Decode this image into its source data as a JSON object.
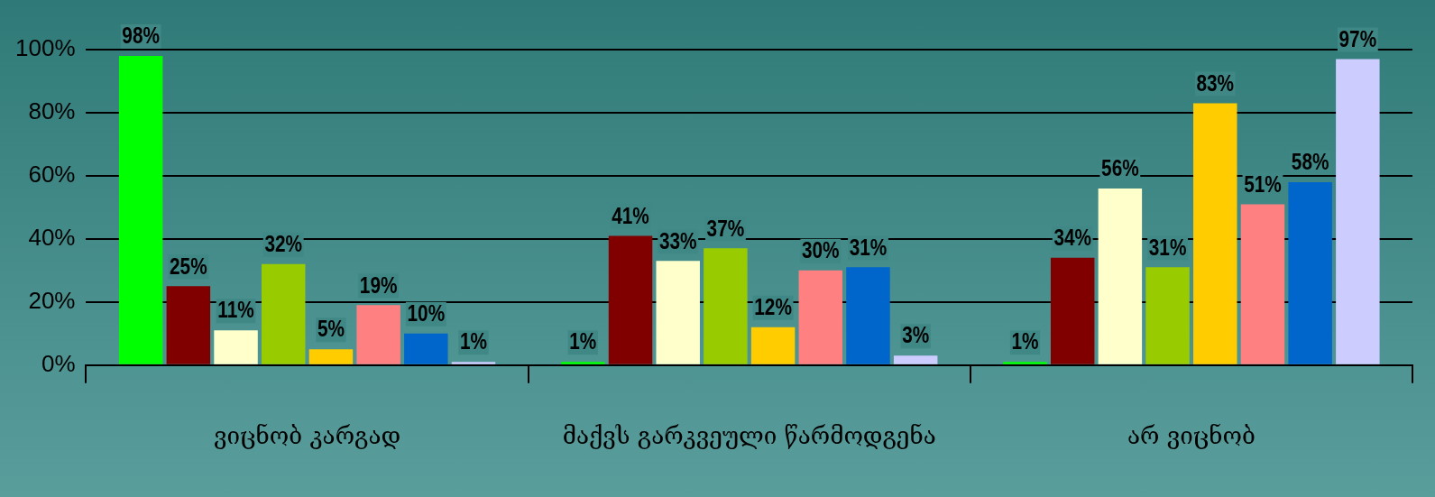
{
  "chart_data": {
    "type": "bar",
    "categories": [
      "ვიცნობ კარგად",
      "მაქვს გარკვეული წარმოდგენა",
      "არ ვიცნობ"
    ],
    "series": [
      {
        "color": "#00ff00",
        "values": [
          98,
          1,
          1
        ],
        "value_labels": [
          "98%",
          "1%",
          "1%"
        ]
      },
      {
        "color": "#800000",
        "values": [
          25,
          41,
          34
        ],
        "value_labels": [
          "25%",
          "41%",
          "34%"
        ]
      },
      {
        "color": "#ffffcc",
        "values": [
          11,
          33,
          56
        ],
        "value_labels": [
          "11%",
          "33%",
          "56%"
        ]
      },
      {
        "color": "#99cc00",
        "values": [
          32,
          37,
          31
        ],
        "value_labels": [
          "32%",
          "37%",
          "31%"
        ]
      },
      {
        "color": "#ffcc00",
        "values": [
          5,
          12,
          83
        ],
        "value_labels": [
          "5%",
          "12%",
          "83%"
        ]
      },
      {
        "color": "#ff8080",
        "values": [
          19,
          30,
          51
        ],
        "value_labels": [
          "19%",
          "30%",
          "51%"
        ]
      },
      {
        "color": "#0066cc",
        "values": [
          10,
          31,
          58
        ],
        "value_labels": [
          "10%",
          "31%",
          "58%"
        ]
      },
      {
        "color": "#ccccff",
        "values": [
          1,
          3,
          97
        ],
        "value_labels": [
          "1%",
          "3%",
          "97%"
        ]
      }
    ],
    "ylim": [
      0,
      100
    ],
    "yticks": [
      {
        "value": 0,
        "label": "0%"
      },
      {
        "value": 20,
        "label": "20%"
      },
      {
        "value": 40,
        "label": "40%"
      },
      {
        "value": 60,
        "label": "60%"
      },
      {
        "value": 80,
        "label": "80%"
      },
      {
        "value": 100,
        "label": "100%"
      }
    ],
    "grid": "y",
    "legend": false
  }
}
